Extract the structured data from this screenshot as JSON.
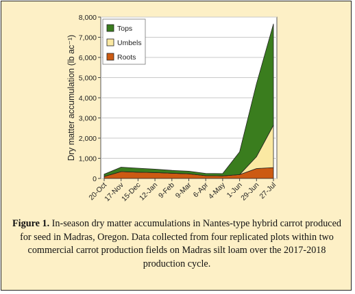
{
  "chart_data": {
    "type": "area",
    "stacked": true,
    "ylabel": "Dry matter accumulation (lb ac⁻¹)",
    "ylim": [
      0,
      8000
    ],
    "yticks": [
      "0",
      "1,000",
      "2,000",
      "3,000",
      "4,000",
      "5,000",
      "6,000",
      "7,000",
      "8,000"
    ],
    "x": [
      "20-Oct",
      "17-Nov",
      "15-Dec",
      "12-Jan",
      "9-Feb",
      "9-Mar",
      "6-Apr",
      "4-May",
      "1-Jun",
      "29-Jun",
      "27-Jul"
    ],
    "legend_position": "top-left",
    "series": [
      {
        "name": "Roots",
        "color": "#cc5a12",
        "values": [
          100,
          340,
          310,
          290,
          260,
          230,
          140,
          130,
          190,
          490,
          540
        ]
      },
      {
        "name": "Umbels",
        "color": "#fbe9a3",
        "values": [
          0,
          0,
          0,
          0,
          0,
          0,
          0,
          0,
          0,
          590,
          2100
        ]
      },
      {
        "name": "Tops",
        "color": "#3a7d1e",
        "values": [
          110,
          220,
          200,
          170,
          140,
          130,
          110,
          110,
          1130,
          3620,
          5020
        ]
      }
    ],
    "legend_order": [
      "Tops",
      "Umbels",
      "Roots"
    ]
  },
  "caption": {
    "label": "Figure 1.",
    "text": " In-season dry matter accumulations in Nantes-type hybrid carrot produced for seed in Madras, Oregon. Data collected from four replicated plots within two commercial carrot production fields on Madras silt loam over the 2017-2018 production cycle."
  }
}
